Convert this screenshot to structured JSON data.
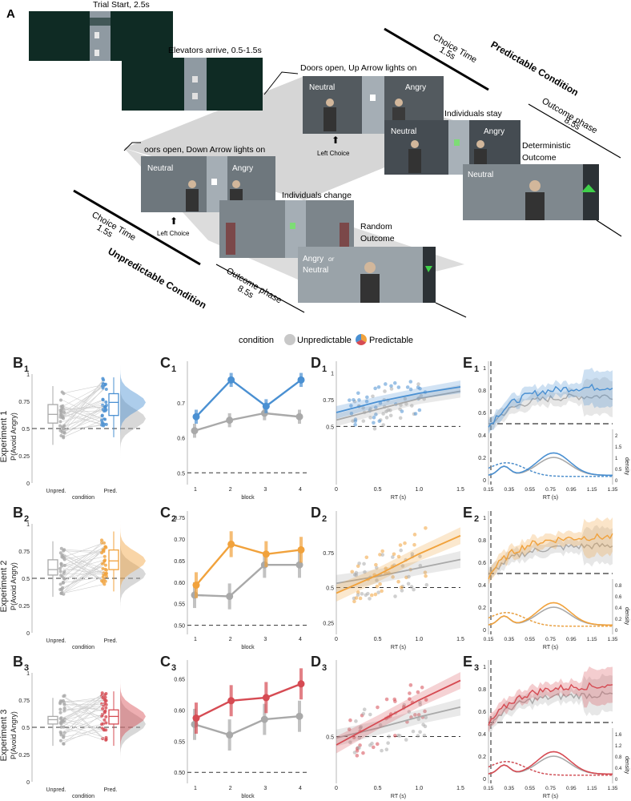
{
  "colors": {
    "unpred": "#a9a9a9",
    "exp1": "#4a90d2",
    "exp2": "#f1a23c",
    "exp3": "#d64b53",
    "scene_dark": "#0f2b24",
    "scene_wall": "#8f9aa2",
    "gray_band": "#d4d4d4"
  },
  "panel_a": {
    "label": "A",
    "trial_start": "Trial Start, 2.5s",
    "elevators_arrive": "Elevators arrive, 0.5-1.5s",
    "doors_up": "Doors open, Up Arrow lights on",
    "doors_down": "oors open, Down Arrow lights on",
    "individuals_stay": "Individuals stay",
    "individuals_change": "Individuals change",
    "deterministic_1": "Deterministic",
    "deterministic_2": "Outcome",
    "random_1": "Random",
    "random_2": "Outcome",
    "left_choice": "Left Choice",
    "choice_time": "Choice Time",
    "choice_time_val": "1.5s",
    "outcome_phase": "Outcome phase",
    "outcome_phase_val": "8.5s",
    "predictable": "Predictable Condition",
    "unpredictable": "Unpredictable Condition",
    "neutral": "Neutral",
    "angry": "Angry",
    "angry_or": "Angry",
    "or_word": "or",
    "neutral_alt": "Neutral"
  },
  "legend": {
    "title": "condition",
    "unpred": "Unpredictable",
    "pred": "Predictable"
  },
  "rows": [
    {
      "exp": "Experiment 1",
      "b": "B",
      "c": "C",
      "d": "D",
      "e": "E",
      "sub": "1"
    },
    {
      "exp": "Experiment 2",
      "b": "B",
      "c": "C",
      "d": "D",
      "e": "E",
      "sub": "2"
    },
    {
      "exp": "Experiment 3",
      "b": "B",
      "c": "C",
      "d": "D",
      "e": "E",
      "sub": "3"
    }
  ],
  "axes": {
    "b_ylabel": "P(Avoid Angry)",
    "b_xlabel": "condition",
    "b_unpred": "Unpred.",
    "b_pred": "Pred.",
    "c_xlabel": "block",
    "d_xlabel": "RT (s)",
    "e_xlabel": "RT (s)",
    "e_density": "density"
  },
  "chart_data": [
    {
      "type": "box",
      "panel": "B1",
      "ylim": [
        0,
        1
      ],
      "yticks": [
        "0",
        "0.25",
        "0.5",
        "0.75",
        "1"
      ],
      "series": [
        {
          "name": "Unpredictable",
          "median": 0.63,
          "q1": 0.55,
          "q3": 0.72
        },
        {
          "name": "Predictable",
          "median": 0.74,
          "q1": 0.62,
          "q3": 0.82
        }
      ],
      "refline": 0.5
    },
    {
      "type": "box",
      "panel": "B2",
      "ylim": [
        0,
        1
      ],
      "yticks": [
        "0",
        "0.25",
        "0.5",
        "0.75",
        "1"
      ],
      "series": [
        {
          "name": "Unpredictable",
          "median": 0.58,
          "q1": 0.53,
          "q3": 0.67
        },
        {
          "name": "Predictable",
          "median": 0.66,
          "q1": 0.58,
          "q3": 0.76
        }
      ],
      "refline": 0.5
    },
    {
      "type": "box",
      "panel": "B3",
      "ylim": [
        0,
        1
      ],
      "yticks": [
        "0",
        "0.25",
        "0.5",
        "0.75",
        "1"
      ],
      "series": [
        {
          "name": "Unpredictable",
          "median": 0.57,
          "q1": 0.53,
          "q3": 0.6
        },
        {
          "name": "Predictable",
          "median": 0.6,
          "q1": 0.53,
          "q3": 0.66
        }
      ],
      "refline": 0.5
    },
    {
      "type": "line",
      "panel": "C1",
      "categories": [
        "1",
        "2",
        "3",
        "4"
      ],
      "ylim": [
        0.48,
        0.8
      ],
      "yticks": [
        "0.5",
        "0.6",
        "0.7"
      ],
      "refline": 0.5,
      "series": [
        {
          "name": "Unpredictable",
          "values": [
            0.62,
            0.65,
            0.67,
            0.66
          ],
          "err": 0.02
        },
        {
          "name": "Predictable",
          "values": [
            0.66,
            0.765,
            0.69,
            0.765
          ],
          "err": 0.02
        }
      ]
    },
    {
      "type": "line",
      "panel": "C2",
      "categories": [
        "1",
        "2",
        "3",
        "4"
      ],
      "ylim": [
        0.49,
        0.75
      ],
      "yticks": [
        "0.50",
        "0.55",
        "0.60",
        "0.65",
        "0.70",
        "0.75"
      ],
      "refline": 0.5,
      "series": [
        {
          "name": "Unpredictable",
          "values": [
            0.57,
            0.567,
            0.64,
            0.64
          ],
          "err": 0.03
        },
        {
          "name": "Predictable",
          "values": [
            0.593,
            0.688,
            0.665,
            0.675
          ],
          "err": 0.03
        }
      ]
    },
    {
      "type": "line",
      "panel": "C3",
      "categories": [
        "1",
        "2",
        "3",
        "4"
      ],
      "ylim": [
        0.49,
        0.67
      ],
      "yticks": [
        "0.50",
        "0.55",
        "0.60",
        "0.65"
      ],
      "refline": 0.5,
      "series": [
        {
          "name": "Unpredictable",
          "values": [
            0.577,
            0.56,
            0.585,
            0.59
          ],
          "err": 0.025
        },
        {
          "name": "Predictable",
          "values": [
            0.587,
            0.615,
            0.62,
            0.642
          ],
          "err": 0.025
        }
      ]
    },
    {
      "type": "scatter",
      "panel": "D1",
      "xlim": [
        0,
        1.5
      ],
      "ylim": [
        0,
        1.05
      ],
      "xticks": [
        "0",
        "0.5",
        "1.0",
        "1.5"
      ],
      "yticks": [
        "0.5",
        "0.75",
        "1"
      ],
      "refline": 0.5,
      "series": [
        {
          "name": "Unpredictable",
          "fit": [
            [
              0,
              0.56
            ],
            [
              0.5,
              0.66
            ],
            [
              1.0,
              0.76
            ],
            [
              1.5,
              0.83
            ]
          ]
        },
        {
          "name": "Predictable",
          "fit": [
            [
              0,
              0.63
            ],
            [
              0.5,
              0.73
            ],
            [
              1.0,
              0.81
            ],
            [
              1.5,
              0.87
            ]
          ]
        }
      ]
    },
    {
      "type": "scatter",
      "panel": "D2",
      "xlim": [
        0,
        1.5
      ],
      "ylim": [
        0.2,
        1.0
      ],
      "xticks": [
        "0",
        "0.5",
        "1.0",
        "1.5"
      ],
      "yticks": [
        "0.25",
        "0.5",
        "0.75"
      ],
      "refline": 0.5,
      "series": [
        {
          "name": "Unpredictable",
          "fit": [
            [
              0,
              0.53
            ],
            [
              0.5,
              0.58
            ],
            [
              1.0,
              0.64
            ],
            [
              1.5,
              0.7
            ]
          ]
        },
        {
          "name": "Predictable",
          "fit": [
            [
              0,
              0.46
            ],
            [
              0.5,
              0.59
            ],
            [
              1.0,
              0.74
            ],
            [
              1.5,
              0.87
            ]
          ]
        }
      ]
    },
    {
      "type": "scatter",
      "panel": "D3",
      "xlim": [
        0,
        1.5
      ],
      "ylim": [
        0.2,
        1.0
      ],
      "xticks": [
        "0",
        "0.5",
        "1.0",
        "1.5"
      ],
      "yticks": [
        "0.5"
      ],
      "refline": 0.5,
      "series": [
        {
          "name": "Unpredictable",
          "fit": [
            [
              0,
              0.49
            ],
            [
              0.5,
              0.56
            ],
            [
              1.0,
              0.64
            ],
            [
              1.5,
              0.71
            ]
          ]
        },
        {
          "name": "Predictable",
          "fit": [
            [
              0,
              0.44
            ],
            [
              0.5,
              0.6
            ],
            [
              1.0,
              0.76
            ],
            [
              1.5,
              0.9
            ]
          ]
        }
      ]
    },
    {
      "type": "area",
      "panel": "E1",
      "xlim": [
        0.15,
        1.35
      ],
      "ylim": [
        0,
        1
      ],
      "xticks": [
        "0.15",
        "0.35",
        "0.55",
        "0.75",
        "0.95",
        "1.15",
        "1.35"
      ],
      "yticks": [
        "0",
        "0.2",
        "0.4",
        "0.6",
        "0.8",
        "1"
      ],
      "density_ticks": [
        "0",
        "0.5",
        "1",
        "1.5",
        "2"
      ],
      "refline": 0.5
    },
    {
      "type": "area",
      "panel": "E2",
      "xlim": [
        0.15,
        1.35
      ],
      "ylim": [
        0,
        1
      ],
      "xticks": [
        "0.15",
        "0.35",
        "0.55",
        "0.75",
        "0.95",
        "1.15",
        "1.35"
      ],
      "yticks": [
        "0",
        "0.2",
        "0.4",
        "0.6",
        "0.8",
        "1"
      ],
      "density_ticks": [
        "0",
        "0.2",
        "0.4",
        "0.6",
        "0.8"
      ],
      "refline": 0.5
    },
    {
      "type": "area",
      "panel": "E3",
      "xlim": [
        0.15,
        1.35
      ],
      "ylim": [
        0,
        1
      ],
      "xticks": [
        "0.15",
        "0.35",
        "0.55",
        "0.75",
        "0.95",
        "1.15",
        "1.35"
      ],
      "yticks": [
        "0",
        "0.2",
        "0.4",
        "0.6",
        "0.8",
        "1"
      ],
      "density_ticks": [
        "0",
        "0.4",
        "0.8",
        "1.2",
        "1.6"
      ],
      "refline": 0.5
    }
  ]
}
